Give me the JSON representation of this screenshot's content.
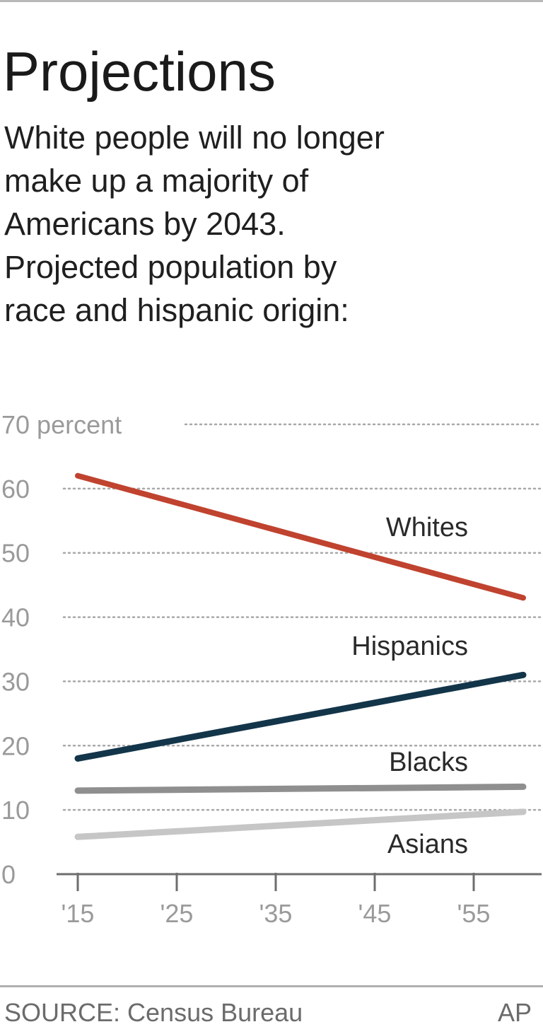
{
  "header": {
    "title": "Projections",
    "subtitle_lines": [
      "White people will no longer",
      "make up a majority of",
      "Americans by 2043.",
      "Projected population by",
      "race and hispanic origin:"
    ]
  },
  "footer": {
    "source": "SOURCE: Census Bureau",
    "credit": "AP"
  },
  "chart_data": {
    "type": "line",
    "title": "",
    "xlabel": "",
    "ylabel": "",
    "y_unit_label": "percent",
    "xlim": [
      2015,
      2060
    ],
    "ylim": [
      0,
      70
    ],
    "y_ticks": [
      0,
      10,
      20,
      30,
      40,
      50,
      60,
      70
    ],
    "y_tick_labels": [
      "0",
      "10",
      "20",
      "30",
      "40",
      "50",
      "60",
      "70 percent"
    ],
    "x_ticks": [
      2015,
      2025,
      2035,
      2045,
      2055
    ],
    "x_tick_labels": [
      "'15",
      "'25",
      "'35",
      "'45",
      "'55"
    ],
    "grid": "horizontal-dotted",
    "series": [
      {
        "name": "Whites",
        "color": "#c0432f",
        "x": [
          2015,
          2060
        ],
        "y": [
          62,
          43
        ]
      },
      {
        "name": "Hispanics",
        "color": "#13354a",
        "x": [
          2015,
          2060
        ],
        "y": [
          18,
          31
        ]
      },
      {
        "name": "Blacks",
        "color": "#8f8f8f",
        "x": [
          2015,
          2060
        ],
        "y": [
          13,
          13.6
        ]
      },
      {
        "name": "Asians",
        "color": "#c6c6c6",
        "x": [
          2015,
          2060
        ],
        "y": [
          5.8,
          9.7
        ]
      }
    ]
  }
}
